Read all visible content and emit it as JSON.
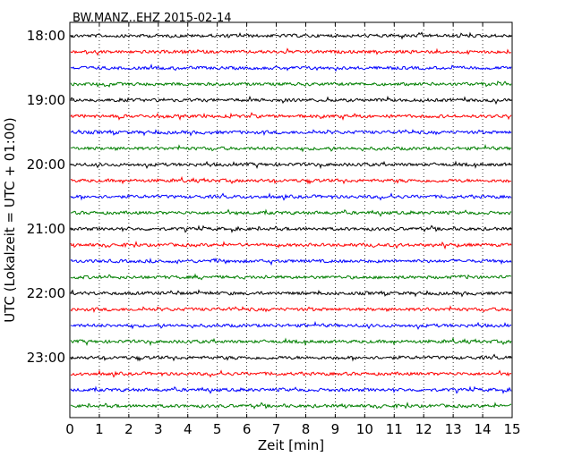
{
  "chart_data": {
    "type": "line",
    "title": "BW.MANZ..EHZ 2015-02-14",
    "xlabel": "Zeit  [min]",
    "ylabel": "UTC (Lokalzeit = UTC + 01:00)",
    "xlim": [
      0,
      15
    ],
    "x_ticks": [
      "0",
      "1",
      "2",
      "3",
      "4",
      "5",
      "6",
      "7",
      "8",
      "9",
      "10",
      "11",
      "12",
      "13",
      "14",
      "15"
    ],
    "y_ticks": [
      "18:00",
      "19:00",
      "20:00",
      "21:00",
      "22:00",
      "23:00"
    ],
    "grid": "vertical dotted",
    "trace_interval_min": 15,
    "color_cycle": [
      "#000000",
      "#ff0000",
      "#0000ff",
      "#007f00"
    ],
    "traces": [
      {
        "start": "18:00",
        "color": "#000000"
      },
      {
        "start": "18:15",
        "color": "#ff0000"
      },
      {
        "start": "18:30",
        "color": "#0000ff"
      },
      {
        "start": "18:45",
        "color": "#007f00"
      },
      {
        "start": "19:00",
        "color": "#000000"
      },
      {
        "start": "19:15",
        "color": "#ff0000"
      },
      {
        "start": "19:30",
        "color": "#0000ff"
      },
      {
        "start": "19:45",
        "color": "#007f00"
      },
      {
        "start": "20:00",
        "color": "#000000"
      },
      {
        "start": "20:15",
        "color": "#ff0000"
      },
      {
        "start": "20:30",
        "color": "#0000ff"
      },
      {
        "start": "20:45",
        "color": "#007f00"
      },
      {
        "start": "21:00",
        "color": "#000000"
      },
      {
        "start": "21:15",
        "color": "#ff0000"
      },
      {
        "start": "21:30",
        "color": "#0000ff"
      },
      {
        "start": "21:45",
        "color": "#007f00"
      },
      {
        "start": "22:00",
        "color": "#000000"
      },
      {
        "start": "22:15",
        "color": "#ff0000"
      },
      {
        "start": "22:30",
        "color": "#0000ff"
      },
      {
        "start": "22:45",
        "color": "#007f00"
      },
      {
        "start": "23:00",
        "color": "#000000"
      },
      {
        "start": "23:15",
        "color": "#ff0000"
      },
      {
        "start": "23:30",
        "color": "#0000ff"
      },
      {
        "start": "23:45",
        "color": "#007f00"
      }
    ]
  }
}
